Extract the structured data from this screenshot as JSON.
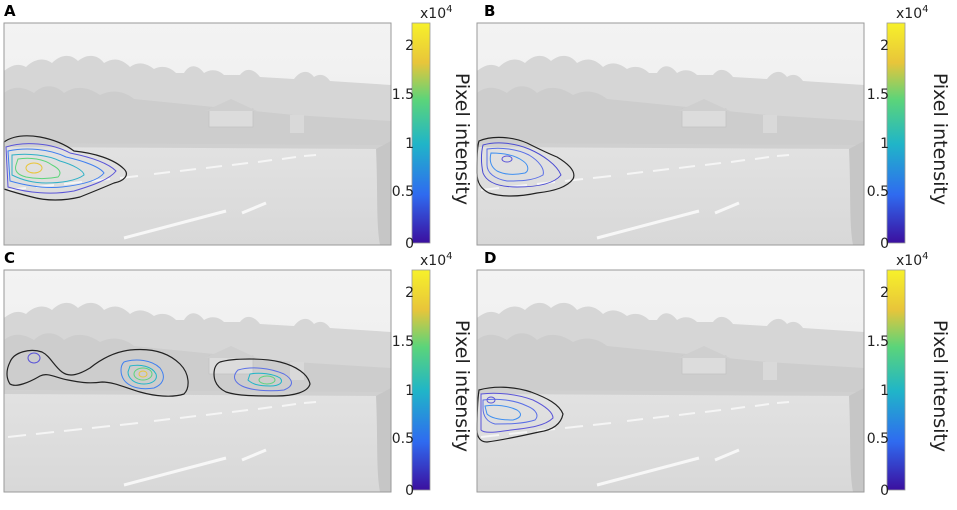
{
  "panels": [
    {
      "letter": "A",
      "colorbar": {
        "exponent_label": "x10",
        "exponent_power": "4",
        "ticks": [
          "0",
          "0.5",
          "1",
          "1.5",
          "2"
        ],
        "label": "Pixel intensity"
      }
    },
    {
      "letter": "B",
      "colorbar": {
        "exponent_label": "x10",
        "exponent_power": "4",
        "ticks": [
          "0",
          "0.5",
          "1",
          "1.5",
          "2"
        ],
        "label": "Pixel intensity"
      }
    },
    {
      "letter": "C",
      "colorbar": {
        "exponent_label": "x10",
        "exponent_power": "4",
        "ticks": [
          "0",
          "0.5",
          "1",
          "1.5",
          "2"
        ],
        "label": "Pixel intensity"
      }
    },
    {
      "letter": "D",
      "colorbar": {
        "exponent_label": "x10",
        "exponent_power": "4",
        "ticks": [
          "0",
          "0.5",
          "1",
          "1.5",
          "2"
        ],
        "label": "Pixel intensity"
      }
    }
  ],
  "chart_data": [
    {
      "type": "heatmap",
      "panel": "A",
      "description_type": "contour overlay on grayscale road scene",
      "colorbar_range": [
        0,
        21000
      ],
      "colorbar_ticks": [
        0,
        5000,
        10000,
        15000,
        20000
      ],
      "colorbar_label": "Pixel intensity",
      "colormap": [
        "#3b0f9f",
        "#2f6bf0",
        "#20b5c8",
        "#5bd47a",
        "#e8c53a",
        "#f7f12a"
      ],
      "contour_levels": [
        1000,
        4000,
        7000,
        10000,
        13000
      ],
      "peak_value": 14000
    },
    {
      "type": "heatmap",
      "panel": "B",
      "colorbar_range": [
        0,
        21000
      ],
      "colorbar_ticks": [
        0,
        5000,
        10000,
        15000,
        20000
      ],
      "colorbar_label": "Pixel intensity",
      "colormap": [
        "#3b0f9f",
        "#2f6bf0",
        "#20b5c8",
        "#5bd47a",
        "#e8c53a",
        "#f7f12a"
      ],
      "contour_levels": [
        1000,
        3000,
        5000,
        7000
      ],
      "peak_value": 7000
    },
    {
      "type": "heatmap",
      "panel": "C",
      "colorbar_range": [
        0,
        21000
      ],
      "colorbar_ticks": [
        0,
        5000,
        10000,
        15000,
        20000
      ],
      "colorbar_label": "Pixel intensity",
      "colormap": [
        "#3b0f9f",
        "#2f6bf0",
        "#20b5c8",
        "#5bd47a",
        "#e8c53a",
        "#f7f12a"
      ],
      "contour_levels": [
        1000,
        4000,
        7000,
        10000
      ],
      "peak_value": 11000
    },
    {
      "type": "heatmap",
      "panel": "D",
      "colorbar_range": [
        0,
        21000
      ],
      "colorbar_ticks": [
        0,
        5000,
        10000,
        15000,
        20000
      ],
      "colorbar_label": "Pixel intensity",
      "colormap": [
        "#3b0f9f",
        "#2f6bf0",
        "#20b5c8",
        "#5bd47a",
        "#e8c53a",
        "#f7f12a"
      ],
      "contour_levels": [
        1000,
        3000,
        5000
      ],
      "peak_value": 6000
    }
  ]
}
